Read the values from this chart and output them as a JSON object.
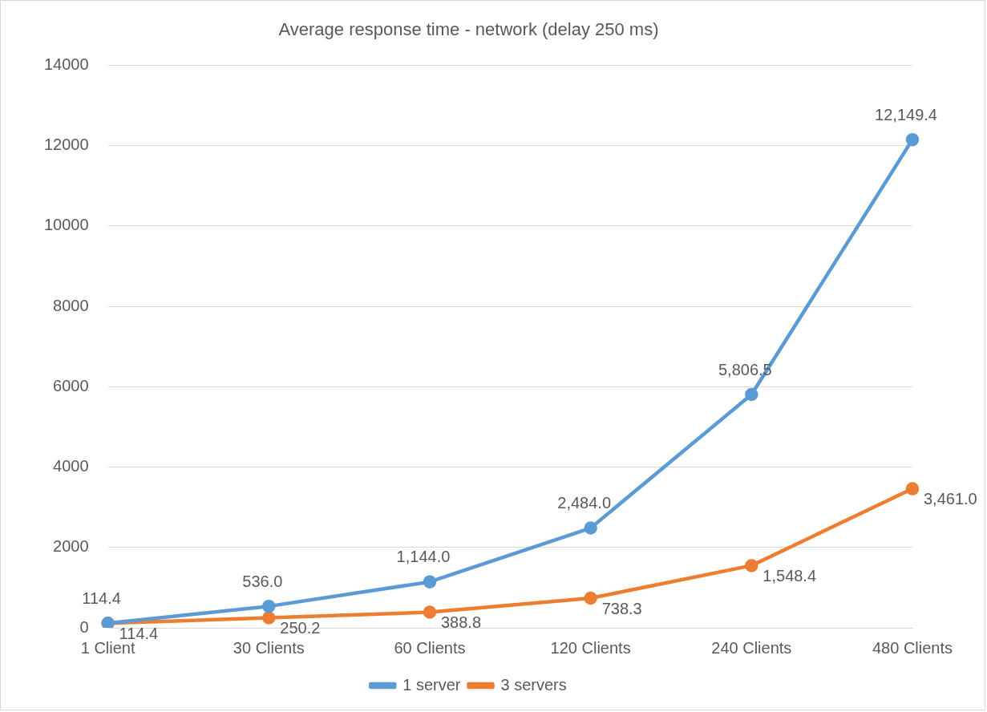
{
  "chart_data": {
    "type": "line",
    "title": "Average response time - network (delay 250 ms)",
    "categories": [
      "1 Client",
      "30 Clients",
      "60 Clients",
      "120 Clients",
      "240 Clients",
      "480 Clients"
    ],
    "series": [
      {
        "name": "1 server",
        "color": "#5b9bd5",
        "values": [
          114.4,
          536.0,
          1144.0,
          2484.0,
          5806.5,
          12149.4
        ],
        "value_labels": [
          "114.4",
          "536.0",
          "1,144.0",
          "2,484.0",
          "5,806.5",
          "12,149.4"
        ]
      },
      {
        "name": "3 servers",
        "color": "#ed7d31",
        "values": [
          114.4,
          250.2,
          388.8,
          738.3,
          1548.4,
          3461.0
        ],
        "value_labels": [
          "114.4",
          "250.2",
          "388.8",
          "738.3",
          "1,548.4",
          "3,461.0"
        ]
      }
    ],
    "ylim": [
      0,
      14000
    ],
    "yticks": [
      0,
      2000,
      4000,
      6000,
      8000,
      10000,
      12000,
      14000
    ],
    "grid": "y",
    "legend": "bottom",
    "marker": "circle",
    "line_style": "solid"
  }
}
